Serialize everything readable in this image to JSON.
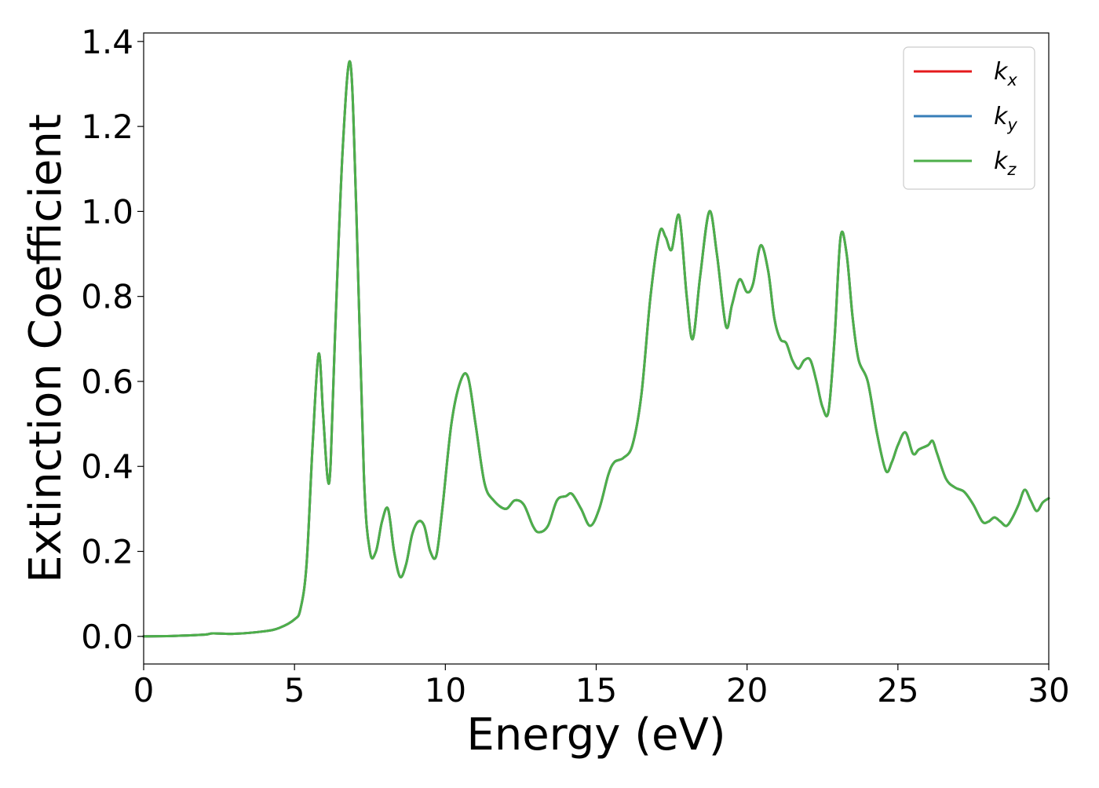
{
  "chart_data": {
    "type": "line",
    "title": "",
    "xlabel": "Energy (eV)",
    "ylabel": "Extinction Coefficient",
    "xlim": [
      0,
      30
    ],
    "ylim": [
      -0.065,
      1.42
    ],
    "xticks": [
      0,
      5,
      10,
      15,
      20,
      25,
      30
    ],
    "xtick_labels": [
      "0",
      "5",
      "10",
      "15",
      "20",
      "25",
      "30"
    ],
    "yticks": [
      0.0,
      0.2,
      0.4,
      0.6,
      0.8,
      1.0,
      1.2,
      1.4
    ],
    "ytick_labels": [
      "0.0",
      "0.2",
      "0.4",
      "0.6",
      "0.8",
      "1.0",
      "1.2",
      "1.4"
    ],
    "grid": false,
    "legend_position": "top-right",
    "x": [
      0,
      1,
      2,
      2.3,
      3,
      4,
      4.5,
      5,
      5.2,
      5.4,
      5.6,
      5.8,
      5.95,
      6.1,
      6.2,
      6.35,
      6.6,
      6.85,
      7.05,
      7.3,
      7.5,
      7.7,
      7.9,
      8.1,
      8.3,
      8.5,
      8.7,
      8.9,
      9.1,
      9.3,
      9.5,
      9.7,
      9.9,
      10.2,
      10.5,
      10.75,
      11.0,
      11.3,
      11.6,
      12.0,
      12.3,
      12.6,
      12.9,
      13.1,
      13.4,
      13.7,
      14.0,
      14.2,
      14.5,
      14.8,
      15.1,
      15.4,
      15.6,
      15.9,
      16.2,
      16.5,
      16.8,
      17.1,
      17.3,
      17.5,
      17.75,
      18.0,
      18.2,
      18.45,
      18.75,
      19.0,
      19.3,
      19.5,
      19.75,
      20.0,
      20.2,
      20.45,
      20.7,
      20.9,
      21.1,
      21.3,
      21.5,
      21.7,
      21.9,
      22.1,
      22.3,
      22.5,
      22.7,
      22.9,
      23.1,
      23.3,
      23.5,
      23.7,
      24.0,
      24.3,
      24.6,
      24.8,
      25.0,
      25.25,
      25.5,
      25.7,
      26.0,
      26.15,
      26.3,
      26.6,
      26.9,
      27.2,
      27.5,
      27.8,
      28.0,
      28.2,
      28.4,
      28.6,
      28.8,
      29.0,
      29.2,
      29.4,
      29.6,
      29.8,
      30.0
    ],
    "series": [
      {
        "name": "k_x",
        "color": "#e41a1c",
        "values": [
          0.0,
          0.001,
          0.004,
          0.007,
          0.006,
          0.012,
          0.02,
          0.04,
          0.065,
          0.17,
          0.45,
          0.665,
          0.52,
          0.37,
          0.41,
          0.72,
          1.15,
          1.35,
          1.0,
          0.38,
          0.2,
          0.2,
          0.27,
          0.3,
          0.2,
          0.14,
          0.17,
          0.24,
          0.27,
          0.26,
          0.2,
          0.19,
          0.3,
          0.5,
          0.6,
          0.61,
          0.5,
          0.36,
          0.32,
          0.3,
          0.32,
          0.31,
          0.26,
          0.245,
          0.26,
          0.32,
          0.33,
          0.335,
          0.3,
          0.26,
          0.3,
          0.38,
          0.41,
          0.42,
          0.45,
          0.57,
          0.8,
          0.95,
          0.94,
          0.91,
          0.99,
          0.8,
          0.7,
          0.85,
          1.0,
          0.9,
          0.73,
          0.78,
          0.84,
          0.81,
          0.83,
          0.92,
          0.86,
          0.75,
          0.7,
          0.69,
          0.65,
          0.63,
          0.65,
          0.65,
          0.6,
          0.54,
          0.53,
          0.7,
          0.94,
          0.9,
          0.75,
          0.65,
          0.6,
          0.48,
          0.39,
          0.41,
          0.45,
          0.48,
          0.43,
          0.44,
          0.45,
          0.46,
          0.43,
          0.37,
          0.35,
          0.34,
          0.31,
          0.27,
          0.27,
          0.28,
          0.27,
          0.26,
          0.28,
          0.31,
          0.345,
          0.32,
          0.295,
          0.315,
          0.325
        ]
      },
      {
        "name": "k_y",
        "color": "#377eb8",
        "values": [
          0.0,
          0.001,
          0.004,
          0.007,
          0.006,
          0.012,
          0.02,
          0.04,
          0.065,
          0.17,
          0.45,
          0.665,
          0.52,
          0.37,
          0.41,
          0.72,
          1.15,
          1.35,
          1.0,
          0.38,
          0.2,
          0.2,
          0.27,
          0.3,
          0.2,
          0.14,
          0.17,
          0.24,
          0.27,
          0.26,
          0.2,
          0.19,
          0.3,
          0.5,
          0.6,
          0.61,
          0.5,
          0.36,
          0.32,
          0.3,
          0.32,
          0.31,
          0.26,
          0.245,
          0.26,
          0.32,
          0.33,
          0.335,
          0.3,
          0.26,
          0.3,
          0.38,
          0.41,
          0.42,
          0.45,
          0.57,
          0.8,
          0.95,
          0.94,
          0.91,
          0.99,
          0.8,
          0.7,
          0.85,
          1.0,
          0.9,
          0.73,
          0.78,
          0.84,
          0.81,
          0.83,
          0.92,
          0.86,
          0.75,
          0.7,
          0.69,
          0.65,
          0.63,
          0.65,
          0.65,
          0.6,
          0.54,
          0.53,
          0.7,
          0.94,
          0.9,
          0.75,
          0.65,
          0.6,
          0.48,
          0.39,
          0.41,
          0.45,
          0.48,
          0.43,
          0.44,
          0.45,
          0.46,
          0.43,
          0.37,
          0.35,
          0.34,
          0.31,
          0.27,
          0.27,
          0.28,
          0.27,
          0.26,
          0.28,
          0.31,
          0.345,
          0.32,
          0.295,
          0.315,
          0.325
        ]
      },
      {
        "name": "k_z",
        "color": "#4daf4a",
        "values": [
          0.0,
          0.001,
          0.004,
          0.007,
          0.006,
          0.012,
          0.02,
          0.04,
          0.065,
          0.17,
          0.45,
          0.665,
          0.52,
          0.37,
          0.41,
          0.72,
          1.15,
          1.35,
          1.0,
          0.38,
          0.2,
          0.2,
          0.27,
          0.3,
          0.2,
          0.14,
          0.17,
          0.24,
          0.27,
          0.26,
          0.2,
          0.19,
          0.3,
          0.5,
          0.6,
          0.61,
          0.5,
          0.36,
          0.32,
          0.3,
          0.32,
          0.31,
          0.26,
          0.245,
          0.26,
          0.32,
          0.33,
          0.335,
          0.3,
          0.26,
          0.3,
          0.38,
          0.41,
          0.42,
          0.45,
          0.57,
          0.8,
          0.95,
          0.94,
          0.91,
          0.99,
          0.8,
          0.7,
          0.85,
          1.0,
          0.9,
          0.73,
          0.78,
          0.84,
          0.81,
          0.83,
          0.92,
          0.86,
          0.75,
          0.7,
          0.69,
          0.65,
          0.63,
          0.65,
          0.65,
          0.6,
          0.54,
          0.53,
          0.7,
          0.94,
          0.9,
          0.75,
          0.65,
          0.6,
          0.48,
          0.39,
          0.41,
          0.45,
          0.48,
          0.43,
          0.44,
          0.45,
          0.46,
          0.43,
          0.37,
          0.35,
          0.34,
          0.31,
          0.27,
          0.27,
          0.28,
          0.27,
          0.26,
          0.28,
          0.31,
          0.345,
          0.32,
          0.295,
          0.315,
          0.325
        ]
      }
    ],
    "legend": [
      {
        "base": "k",
        "sub": "x",
        "color": "#e41a1c"
      },
      {
        "base": "k",
        "sub": "y",
        "color": "#377eb8"
      },
      {
        "base": "k",
        "sub": "z",
        "color": "#4daf4a"
      }
    ]
  }
}
